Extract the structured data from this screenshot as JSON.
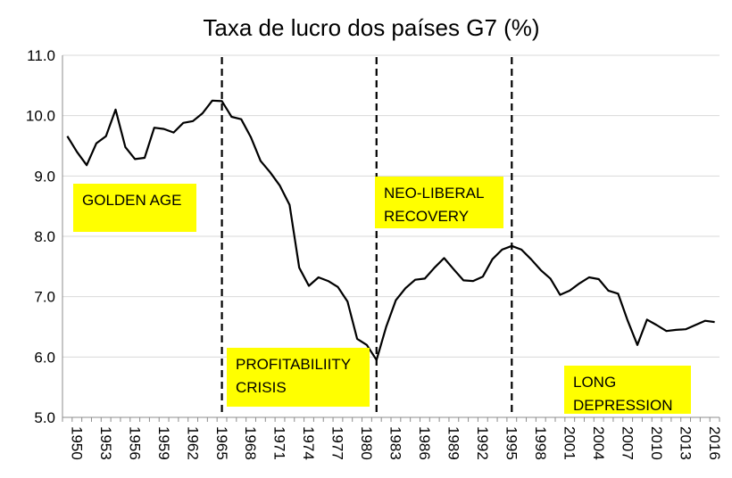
{
  "chart_data": {
    "type": "line",
    "title": "Taxa de lucro dos países G7 (%)",
    "xlabel": "",
    "ylabel": "",
    "ylim": [
      5.0,
      11.0
    ],
    "y_ticks": [
      "5.0",
      "6.0",
      "7.0",
      "8.0",
      "9.0",
      "10.0",
      "11.0"
    ],
    "x_tick_labels": [
      "1950",
      "1953",
      "1956",
      "1959",
      "1962",
      "1965",
      "1968",
      "1971",
      "1974",
      "1977",
      "1980",
      "1983",
      "1986",
      "1989",
      "1992",
      "1995",
      "1998",
      "2001",
      "2004",
      "2007",
      "2010",
      "2013",
      "2016"
    ],
    "grid": "horizontal",
    "x": [
      1950,
      1951,
      1952,
      1953,
      1954,
      1955,
      1956,
      1957,
      1958,
      1959,
      1960,
      1961,
      1962,
      1963,
      1964,
      1965,
      1966,
      1967,
      1968,
      1969,
      1970,
      1971,
      1972,
      1973,
      1974,
      1975,
      1976,
      1977,
      1978,
      1979,
      1980,
      1981,
      1982,
      1983,
      1984,
      1985,
      1986,
      1987,
      1988,
      1989,
      1990,
      1991,
      1992,
      1993,
      1994,
      1995,
      1996,
      1997,
      1998,
      1999,
      2000,
      2001,
      2002,
      2003,
      2004,
      2005,
      2006,
      2007,
      2008,
      2009,
      2010,
      2011,
      2012,
      2013,
      2014,
      2015,
      2016,
      2017
    ],
    "series": [
      {
        "values": [
          9.66,
          9.4,
          9.18,
          9.54,
          9.66,
          10.1,
          9.48,
          9.28,
          9.3,
          9.8,
          9.78,
          9.72,
          9.88,
          9.91,
          10.04,
          10.25,
          10.24,
          9.98,
          9.94,
          9.64,
          9.25,
          9.06,
          8.84,
          8.52,
          7.48,
          7.18,
          7.32,
          7.26,
          7.16,
          6.92,
          6.3,
          6.2,
          5.95,
          6.5,
          6.94,
          7.14,
          7.28,
          7.3,
          7.48,
          7.64,
          7.45,
          7.27,
          7.26,
          7.33,
          7.62,
          7.78,
          7.84,
          7.78,
          7.62,
          7.44,
          7.3,
          7.03,
          7.1,
          7.22,
          7.32,
          7.29,
          7.1,
          7.05,
          6.6,
          6.2,
          6.62,
          6.53,
          6.43,
          6.45,
          6.46,
          6.53,
          6.6,
          6.58
        ],
        "color": "#000000"
      }
    ],
    "dividers": [
      1966,
      1982,
      1996
    ],
    "annotations": [
      {
        "lines": [
          "GOLDEN AGE"
        ],
        "color": "#ffff00"
      },
      {
        "lines": [
          "PROFITABILIITY",
          "CRISIS"
        ],
        "color": "#ffff00"
      },
      {
        "lines": [
          "NEO-LIBERAL",
          "RECOVERY"
        ],
        "color": "#ffff00"
      },
      {
        "lines": [
          "LONG",
          "DEPRESSION"
        ],
        "color": "#ffff00"
      }
    ]
  }
}
